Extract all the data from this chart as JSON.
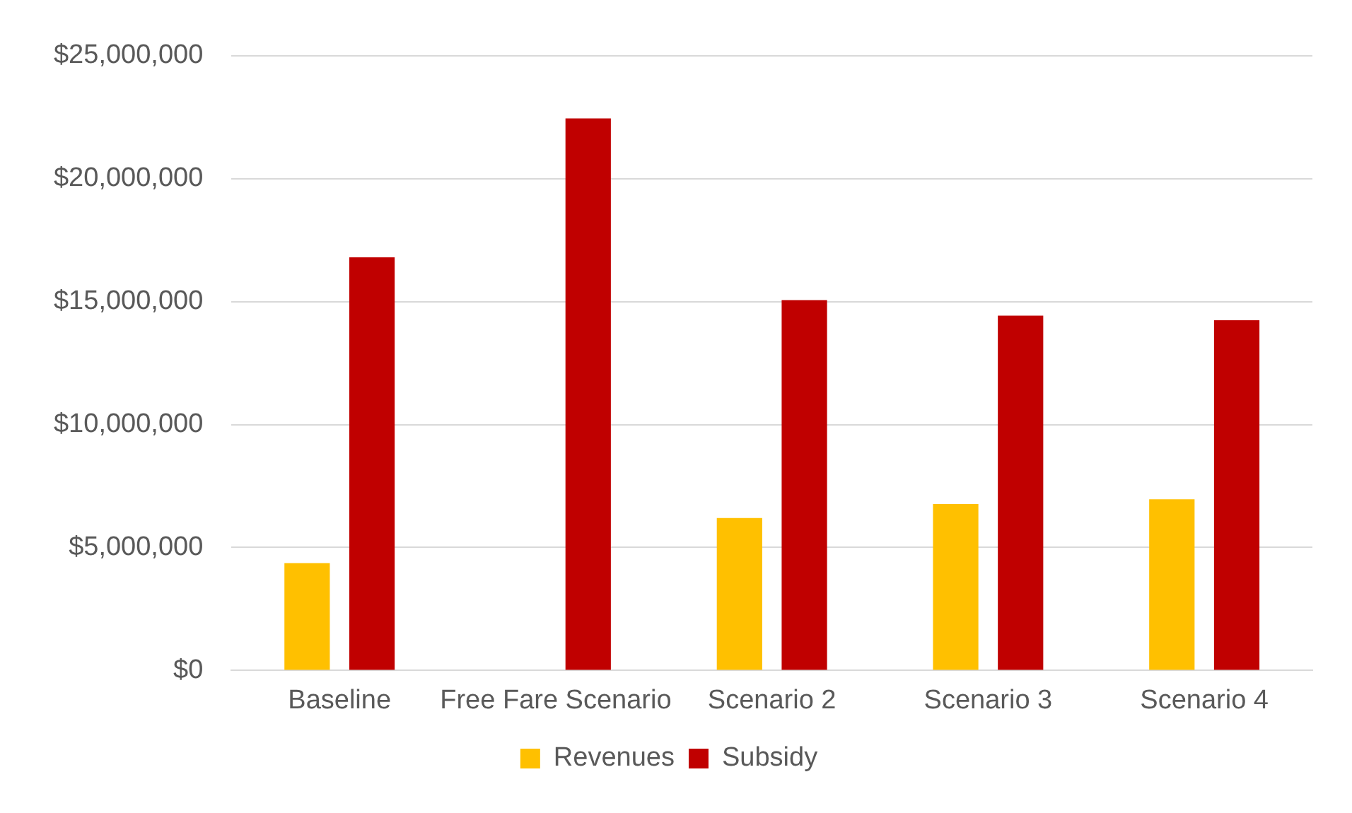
{
  "chart_data": {
    "type": "bar",
    "categories": [
      "Baseline",
      "Free Fare Scenario",
      "Scenario 2",
      "Scenario 3",
      "Scenario 4"
    ],
    "series": [
      {
        "name": "Revenues",
        "color": "#ffc000",
        "values": [
          4370000,
          0,
          6200000,
          6770000,
          6960000
        ]
      },
      {
        "name": "Subsidy",
        "color": "#c00000",
        "values": [
          16800000,
          22450000,
          15060000,
          14430000,
          14240000
        ]
      }
    ],
    "ylim": [
      0,
      25000000
    ],
    "yticks": [
      {
        "value": 0,
        "label": "$0"
      },
      {
        "value": 5000000,
        "label": "$5,000,000"
      },
      {
        "value": 10000000,
        "label": "$10,000,000"
      },
      {
        "value": 15000000,
        "label": "$15,000,000"
      },
      {
        "value": 20000000,
        "label": "$20,000,000"
      },
      {
        "value": 25000000,
        "label": "$25,000,000"
      }
    ],
    "grid": "y",
    "legend": "bottom"
  }
}
